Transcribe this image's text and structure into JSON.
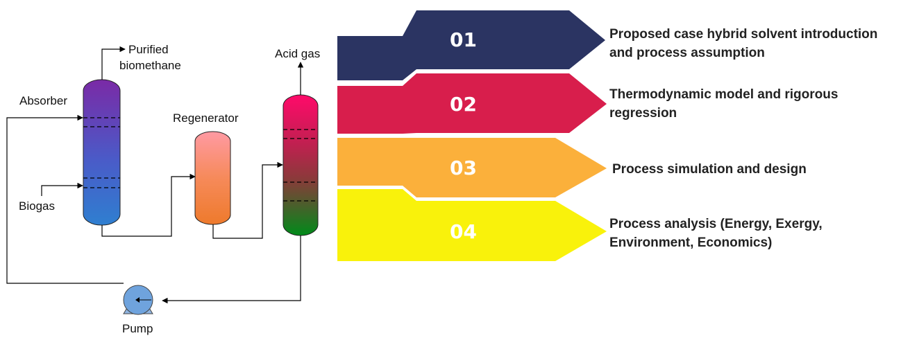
{
  "process": {
    "purified_label_1": "Purified",
    "purified_label_2": "biomethane",
    "absorber_label": "Absorber",
    "biogas_label": "Biogas",
    "regenerator_label": "Regenerator",
    "acid_gas_label": "Acid gas",
    "pump_label": "Pump"
  },
  "steps": [
    {
      "number": "01",
      "line1": "Proposed case hybrid solvent introduction",
      "line2": "and process assumption",
      "color": "#2b3462"
    },
    {
      "number": "02",
      "line1": "Thermodynamic model and rigorous",
      "line2": "regression",
      "color": "#d81e4c"
    },
    {
      "number": "03",
      "line1": "Process simulation and design",
      "line2": "",
      "color": "#fbb03b"
    },
    {
      "number": "04",
      "line1": "Process analysis (Energy, Exergy,",
      "line2": "Environment, Economics)",
      "color": "#f9f20b"
    }
  ]
}
